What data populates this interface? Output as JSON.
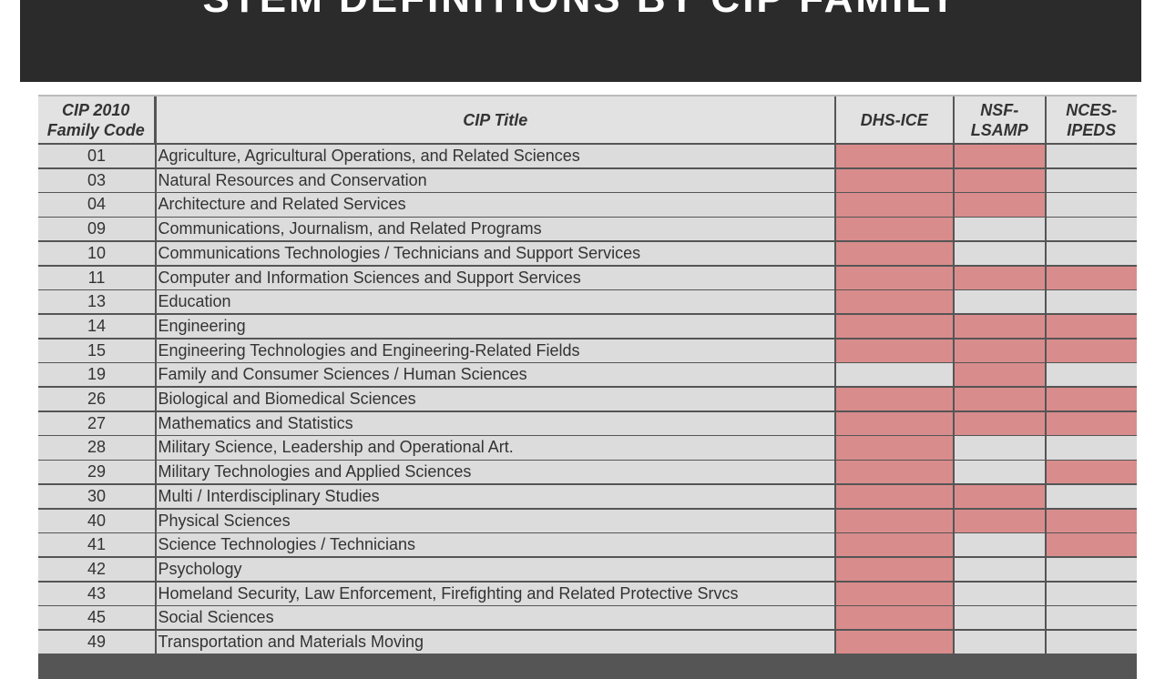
{
  "header": {
    "title": "STEM DEFINITIONS BY CIP FAMILY"
  },
  "table": {
    "columns": [
      "CIP 2010 Family Code",
      "CIP Title",
      "DHS-ICE",
      "NSF-LSAMP",
      "NCES-IPEDS"
    ],
    "shaded_color": "#d98c8c",
    "rows": [
      {
        "code": "01",
        "title": "Agriculture, Agricultural Operations, and Related Sciences",
        "flags": [
          true,
          true,
          false
        ]
      },
      {
        "code": "03",
        "title": "Natural Resources and Conservation",
        "flags": [
          true,
          true,
          false
        ]
      },
      {
        "code": "04",
        "title": "Architecture and Related Services",
        "flags": [
          true,
          true,
          false
        ]
      },
      {
        "code": "09",
        "title": "Communications, Journalism, and Related Programs",
        "flags": [
          true,
          false,
          false
        ]
      },
      {
        "code": "10",
        "title": "Communications Technologies / Technicians and Support Services",
        "flags": [
          true,
          false,
          false
        ]
      },
      {
        "code": "11",
        "title": "Computer and Information Sciences and Support Services",
        "flags": [
          true,
          true,
          true
        ]
      },
      {
        "code": "13",
        "title": "Education",
        "flags": [
          true,
          false,
          false
        ]
      },
      {
        "code": "14",
        "title": "Engineering",
        "flags": [
          true,
          true,
          true
        ]
      },
      {
        "code": "15",
        "title": "Engineering Technologies and Engineering-Related Fields",
        "flags": [
          true,
          true,
          true
        ]
      },
      {
        "code": "19",
        "title": "Family and Consumer Sciences / Human Sciences",
        "flags": [
          false,
          true,
          false
        ]
      },
      {
        "code": "26",
        "title": "Biological and Biomedical Sciences",
        "flags": [
          true,
          true,
          true
        ]
      },
      {
        "code": "27",
        "title": "Mathematics and Statistics",
        "flags": [
          true,
          true,
          true
        ]
      },
      {
        "code": "28",
        "title": "Military Science, Leadership and Operational Art.",
        "flags": [
          true,
          false,
          false
        ]
      },
      {
        "code": "29",
        "title": "Military Technologies and Applied Sciences",
        "flags": [
          true,
          false,
          true
        ]
      },
      {
        "code": "30",
        "title": "Multi / Interdisciplinary Studies",
        "flags": [
          true,
          true,
          false
        ]
      },
      {
        "code": "40",
        "title": "Physical Sciences",
        "flags": [
          true,
          true,
          true
        ]
      },
      {
        "code": "41",
        "title": "Science Technologies / Technicians",
        "flags": [
          true,
          false,
          true
        ]
      },
      {
        "code": "42",
        "title": "Psychology",
        "flags": [
          true,
          false,
          false
        ]
      },
      {
        "code": "43",
        "title": "Homeland Security, Law Enforcement, Firefighting and Related Protective Srvcs",
        "flags": [
          true,
          false,
          false
        ]
      },
      {
        "code": "45",
        "title": "Social Sciences",
        "flags": [
          true,
          false,
          false
        ]
      },
      {
        "code": "49",
        "title": "Transportation and Materials Moving",
        "flags": [
          true,
          false,
          false
        ]
      }
    ]
  }
}
